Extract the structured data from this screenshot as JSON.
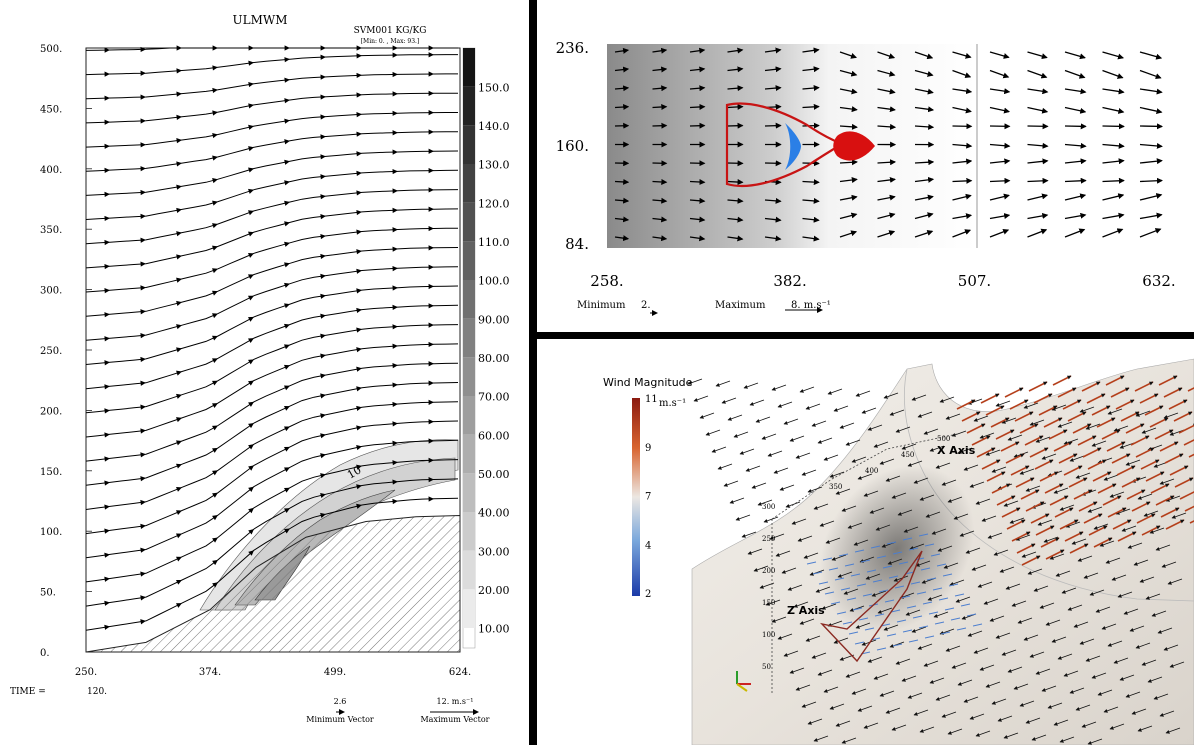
{
  "panel_left": {
    "title": "ULMWM",
    "field_label": "SVM001 KG/KG",
    "field_range": "[Min: 0. , Max: 93.]",
    "contour_label": "10",
    "time_label": "TIME =",
    "time_value": "120.",
    "min_vector_value": "2.6",
    "min_vector_label": "Minimum Vector",
    "max_vector_value": "12. m.s⁻¹",
    "max_vector_label": "Maximum Vector"
  },
  "panel_top_right": {
    "min_label": "Minimum",
    "min_value": "2.",
    "max_label": "Maximum",
    "max_value": "8. m.s⁻¹"
  },
  "panel_3d": {
    "legend_title": "Wind Magnitude",
    "legend_unit": "m.s⁻¹",
    "legend_ticks": [
      "11",
      "9",
      "7",
      "4",
      "2"
    ],
    "axis_x_label": "X Axis",
    "axis_z_label": "Z Axis",
    "x_axis_ticks": [
      "350",
      "400",
      "450",
      "500"
    ],
    "z_axis_ticks": [
      "300",
      "250",
      "200",
      "150",
      "100",
      "50"
    ]
  },
  "chart_data": [
    {
      "type": "heatmap",
      "x_ticks": [
        "250.",
        "374.",
        "499.",
        "624."
      ],
      "y_ticks": [
        "500.",
        "450.",
        "400.",
        "350.",
        "300.",
        "250.",
        "200.",
        "150.",
        "100.",
        "50.",
        "0."
      ],
      "xlim": [
        250,
        624
      ],
      "ylim": [
        0,
        500
      ],
      "colorbar_ticks": [
        "150.0",
        "140.0",
        "130.0",
        "120.0",
        "110.0",
        "100.0",
        "90.00",
        "80.00",
        "70.00",
        "60.00",
        "50.00",
        "40.00",
        "30.00",
        "20.00",
        "10.00"
      ],
      "terrain_profile": {
        "x": [
          250,
          310,
          374,
          420,
          470,
          530,
          580,
          624
        ],
        "y": [
          0,
          8,
          35,
          70,
          95,
          108,
          112,
          113
        ]
      },
      "vectors": "streamlines rising over hill, magnitude 2.6 to 12 m.s⁻¹",
      "colors": {
        "terrain_hatch": "#777777",
        "colorbar_top": "#111111",
        "colorbar_bottom": "#eeeeee"
      }
    },
    {
      "type": "heatmap",
      "x_ticks": [
        "258.",
        "382.",
        "507.",
        "632."
      ],
      "y_ticks": [
        "236.",
        "160.",
        "84."
      ],
      "xlim": [
        258,
        632
      ],
      "ylim": [
        84,
        236
      ],
      "vectors": "eastward flow, min 2. max 8. m.s⁻¹",
      "colors": {
        "contour": "#cc1111",
        "inner": "#2a7fe0",
        "background_dark": "#8a8a8a",
        "background_light": "#ffffff"
      }
    },
    {
      "type": "scatter",
      "colorbar_range": [
        2,
        11
      ],
      "colors": {
        "high": "#8b1a10",
        "mid": "#ece7e2",
        "low": "#1b3aa8"
      }
    }
  ]
}
